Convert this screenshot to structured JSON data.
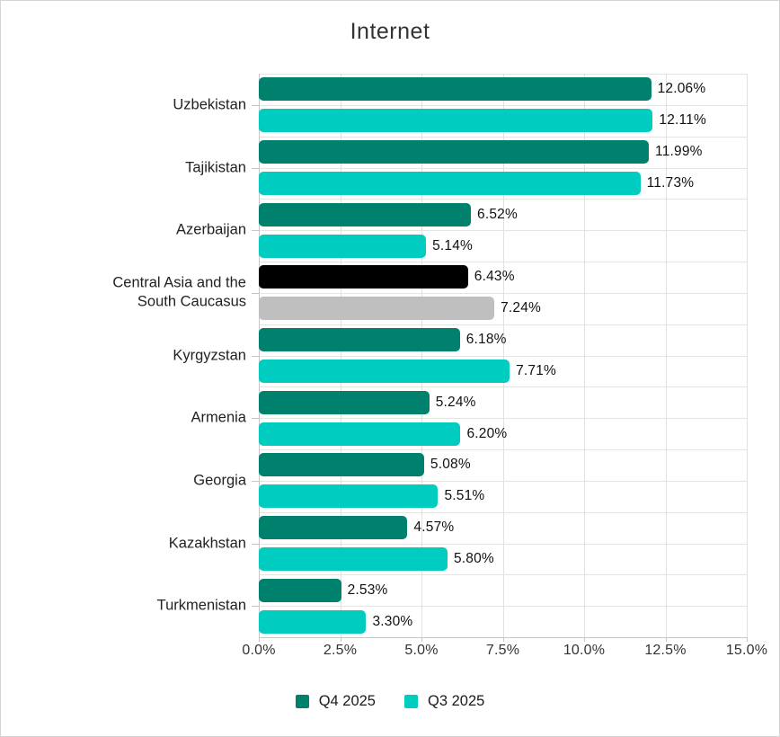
{
  "title": "Internet",
  "chart_data": {
    "type": "bar",
    "orientation": "horizontal",
    "title": "Internet",
    "categories": [
      "Uzbekistan",
      "Tajikistan",
      "Azerbaijan",
      "Central Asia and the South Caucasus",
      "Kyrgyzstan",
      "Armenia",
      "Georgia",
      "Kazakhstan",
      "Turkmenistan"
    ],
    "series": [
      {
        "name": "Q4 2025",
        "color": "#00816d",
        "values": [
          12.06,
          11.99,
          6.52,
          6.43,
          6.18,
          5.24,
          5.08,
          4.57,
          2.53
        ],
        "labels": [
          "12.06%",
          "11.99%",
          "6.52%",
          "6.43%",
          "6.18%",
          "5.24%",
          "5.08%",
          "4.57%",
          "2.53%"
        ]
      },
      {
        "name": "Q3 2025",
        "color": "#00ccc0",
        "values": [
          12.11,
          11.73,
          5.14,
          7.24,
          7.71,
          6.2,
          5.51,
          5.8,
          3.3
        ],
        "labels": [
          "12.11%",
          "11.73%",
          "5.14%",
          "7.24%",
          "7.71%",
          "6.20%",
          "5.51%",
          "5.80%",
          "3.30%"
        ]
      }
    ],
    "category_colors": {
      "Central Asia and the South Caucasus": [
        "#000000",
        "#bfbfbf"
      ]
    },
    "xlim": [
      0,
      15
    ],
    "x_ticks": [
      "0.0%",
      "2.5%",
      "5.0%",
      "7.5%",
      "10.0%",
      "12.5%",
      "15.0%"
    ],
    "grid": true,
    "legend_position": "bottom",
    "value_label_color": "#111111",
    "axis_label_color": "#333333"
  }
}
